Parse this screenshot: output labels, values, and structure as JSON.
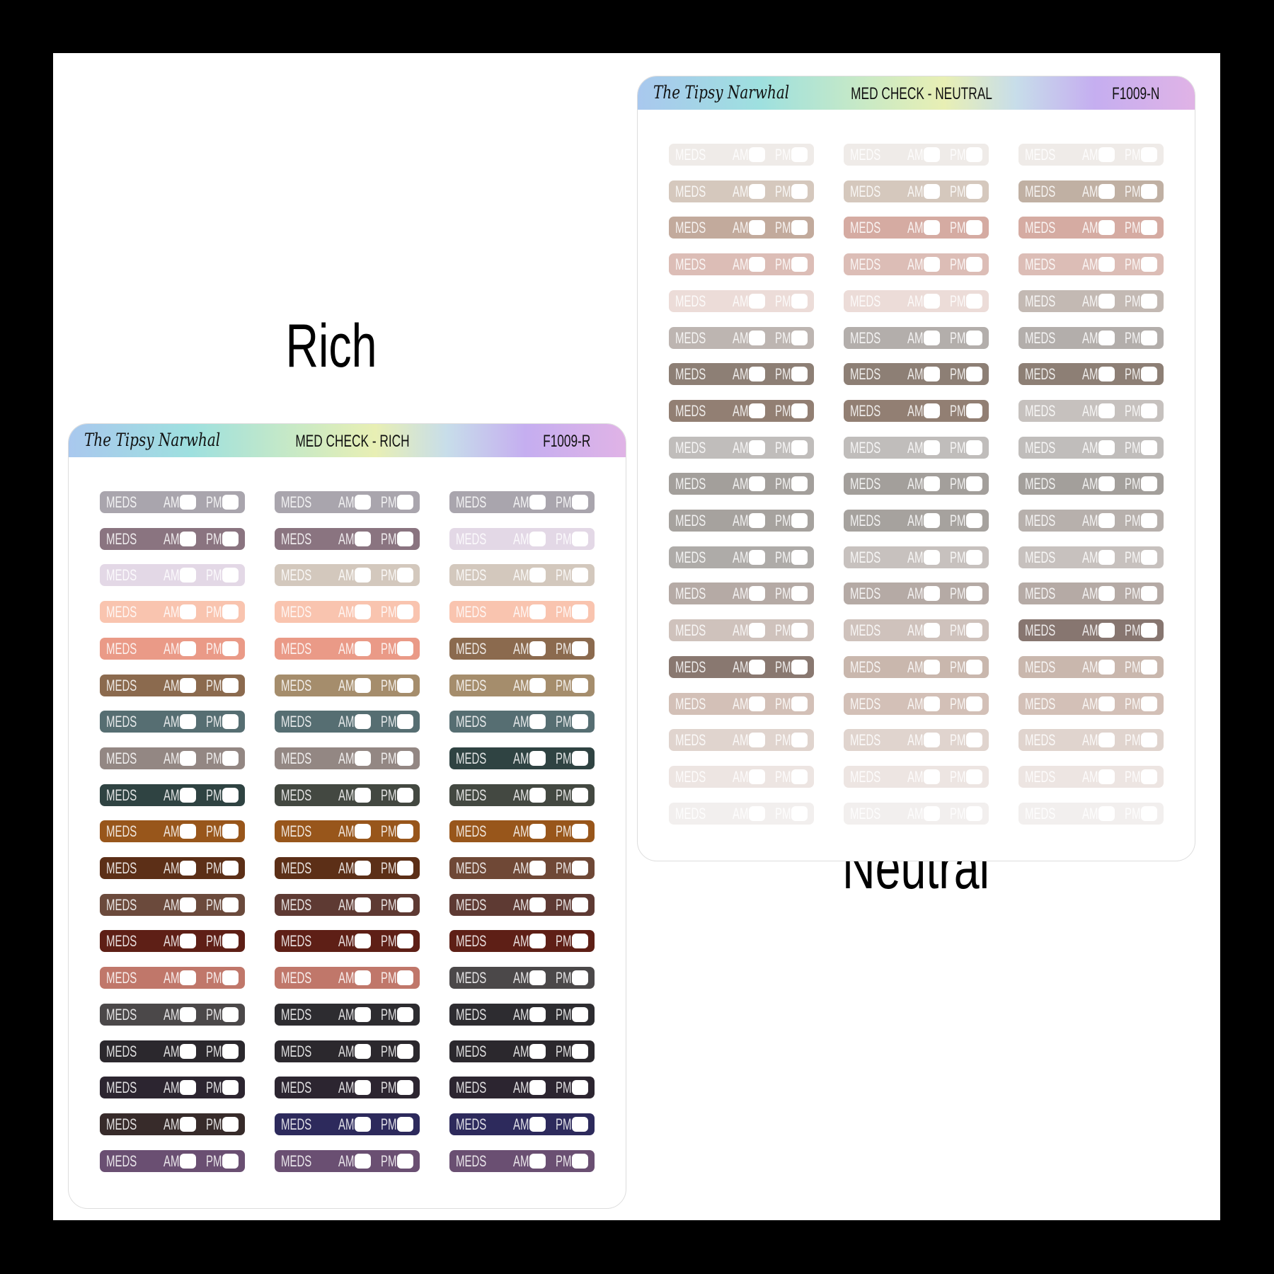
{
  "sticker": {
    "meds": "MEDS",
    "am": "AM",
    "pm": "PM"
  },
  "sheets": [
    {
      "label": "Rich",
      "brand": "The Tipsy Narwhal",
      "title": "MED CHECK - RICH",
      "code": "F1009-R",
      "rows": [
        [
          "#a9a5ad",
          "#a9a5ad",
          "#a9a5ad"
        ],
        [
          "#8a7480",
          "#8a7480",
          "#e3d8e6"
        ],
        [
          "#e3d8e6",
          "#d3c8bd",
          "#d3c8bd"
        ],
        [
          "#f9c4af",
          "#f9c4af",
          "#f9c4af"
        ],
        [
          "#ea9a87",
          "#ea9a87",
          "#8b6a4e"
        ],
        [
          "#8b6a4e",
          "#a58d6c",
          "#a58d6c"
        ],
        [
          "#566e72",
          "#566e72",
          "#566e72"
        ],
        [
          "#938783",
          "#938783",
          "#2f4342"
        ],
        [
          "#2f4342",
          "#434841",
          "#434841"
        ],
        [
          "#98561b",
          "#98561b",
          "#98561b"
        ],
        [
          "#5c2f17",
          "#5c2f17",
          "#6f4836"
        ],
        [
          "#6b4a3c",
          "#5e3a33",
          "#5e3a33"
        ],
        [
          "#5e1f16",
          "#5e1f16",
          "#5e1f16"
        ],
        [
          "#c0776a",
          "#c0776a",
          "#4b4849"
        ],
        [
          "#4b4849",
          "#2d2c30",
          "#2d2c30"
        ],
        [
          "#2b282d",
          "#2b282d",
          "#2b282d"
        ],
        [
          "#2c2530",
          "#2c2530",
          "#2c2530"
        ],
        [
          "#372b2a",
          "#2d2a5c",
          "#2d2a5c"
        ],
        [
          "#6a4f72",
          "#6a4f72",
          "#6a4f72"
        ]
      ]
    },
    {
      "label": "Neutral",
      "brand": "The Tipsy Narwhal",
      "title": "MED CHECK - NEUTRAL",
      "code": "F1009-N",
      "rows": [
        [
          "#efebe8",
          "#efebe8",
          "#efebe8"
        ],
        [
          "#d5c8bd",
          "#d5c8bd",
          "#c0b0a3"
        ],
        [
          "#c2aa9c",
          "#d5aba2",
          "#d5aba2"
        ],
        [
          "#dcbdb6",
          "#dcbdb6",
          "#dcbdb6"
        ],
        [
          "#ecdcd8",
          "#ecdcd8",
          "#c3b9b3"
        ],
        [
          "#bdb5b1",
          "#b3aeab",
          "#b3aeab"
        ],
        [
          "#8d7f75",
          "#8d7f75",
          "#8d7f75"
        ],
        [
          "#927f73",
          "#927f73",
          "#c6c1be"
        ],
        [
          "#c0bdbb",
          "#c0bdbb",
          "#c0bdbb"
        ],
        [
          "#a39f9b",
          "#a39f9b",
          "#a39f9b"
        ],
        [
          "#a6a29e",
          "#a6a29e",
          "#b7b0ac"
        ],
        [
          "#aeaba8",
          "#c7c1be",
          "#c7c1be"
        ],
        [
          "#b5aaa5",
          "#b5aaa5",
          "#b5aaa5"
        ],
        [
          "#cfc2bc",
          "#cfc2bc",
          "#877670"
        ],
        [
          "#897870",
          "#c9b7ad",
          "#c9b7ad"
        ],
        [
          "#d3c0b7",
          "#d3c0b7",
          "#d3c0b7"
        ],
        [
          "#e0d4ce",
          "#e0d4ce",
          "#e0d4ce"
        ],
        [
          "#ede5e2",
          "#ede5e2",
          "#ede5e2"
        ],
        [
          "#f2efee",
          "#f2efee",
          "#f2efee"
        ]
      ]
    }
  ]
}
